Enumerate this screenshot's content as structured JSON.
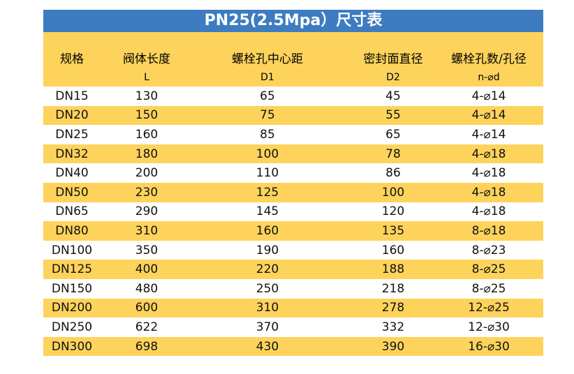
{
  "title": "PN25(2.5Mpa）尺寸表",
  "colors": {
    "title_bg": "#3d7cc0",
    "stripe": "#fdd35c"
  },
  "headers": [
    {
      "label": "规格",
      "sub": ""
    },
    {
      "label": "阀体长度",
      "sub": "L"
    },
    {
      "label": "螺栓孔中心距",
      "sub": "D1"
    },
    {
      "label": "密封面直径",
      "sub": "D2"
    },
    {
      "label": "螺栓孔数/孔径",
      "sub": "n-⌀d"
    }
  ],
  "rows": [
    [
      "DN15",
      "130",
      "65",
      "45",
      "4-⌀14"
    ],
    [
      "DN20",
      "150",
      "75",
      "55",
      "4-⌀14"
    ],
    [
      "DN25",
      "160",
      "85",
      "65",
      "4-⌀14"
    ],
    [
      "DN32",
      "180",
      "100",
      "78",
      "4-⌀18"
    ],
    [
      "DN40",
      "200",
      "110",
      "86",
      "4-⌀18"
    ],
    [
      "DN50",
      "230",
      "125",
      "100",
      "4-⌀18"
    ],
    [
      "DN65",
      "290",
      "145",
      "120",
      "4-⌀18"
    ],
    [
      "DN80",
      "310",
      "160",
      "135",
      "8-⌀18"
    ],
    [
      "DN100",
      "350",
      "190",
      "160",
      "8-⌀23"
    ],
    [
      "DN125",
      "400",
      "220",
      "188",
      "8-⌀25"
    ],
    [
      "DN150",
      "480",
      "250",
      "218",
      "8-⌀25"
    ],
    [
      "DN200",
      "600",
      "310",
      "278",
      "12-⌀25"
    ],
    [
      "DN250",
      "622",
      "370",
      "332",
      "12-⌀30"
    ],
    [
      "DN300",
      "698",
      "430",
      "390",
      "16-⌀30"
    ]
  ]
}
